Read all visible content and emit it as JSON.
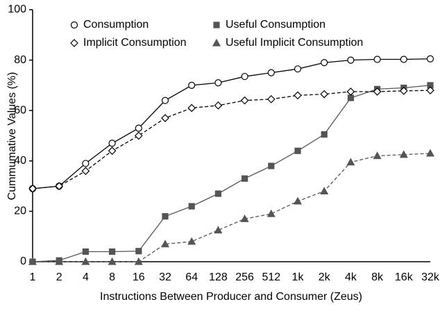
{
  "chart_data": {
    "type": "line",
    "xlabel": "Instructions Between Producer and Consumer (Zeus)",
    "ylabel": "Cummumative Values (%)",
    "categories": [
      "1",
      "2",
      "4",
      "8",
      "16",
      "32",
      "64",
      "128",
      "256",
      "512",
      "1k",
      "2k",
      "4k",
      "8k",
      "16k",
      "32k"
    ],
    "ylim": [
      0,
      100
    ],
    "yticks": [
      0,
      20,
      40,
      60,
      80,
      100
    ],
    "series": [
      {
        "name": "Consumption",
        "color": "#000000",
        "marker": "circle",
        "dashed": false,
        "values": [
          29,
          30,
          39,
          47,
          53,
          64,
          70,
          71,
          73.5,
          75,
          76.5,
          79,
          80,
          80.3,
          80.3,
          80.5
        ]
      },
      {
        "name": "Useful Consumption",
        "color": "#555555",
        "marker": "square",
        "dashed": false,
        "values": [
          0,
          0.5,
          4,
          4,
          4.2,
          18,
          22,
          27,
          33,
          38,
          44,
          50.5,
          65,
          68.5,
          69,
          70
        ]
      },
      {
        "name": "Implicit Consumption",
        "color": "#000000",
        "marker": "diamond",
        "dashed": true,
        "values": [
          29,
          30,
          36,
          44,
          50,
          57,
          61,
          62,
          64,
          64.5,
          66,
          66.5,
          67.5,
          67.5,
          67.8,
          68
        ]
      },
      {
        "name": "Useful Implicit Consumption",
        "color": "#555555",
        "marker": "triangle",
        "dashed": true,
        "values": [
          0,
          0,
          0,
          0,
          0,
          7,
          8,
          12.5,
          17,
          19,
          24,
          28,
          39.5,
          42,
          42.5,
          43
        ]
      }
    ]
  }
}
